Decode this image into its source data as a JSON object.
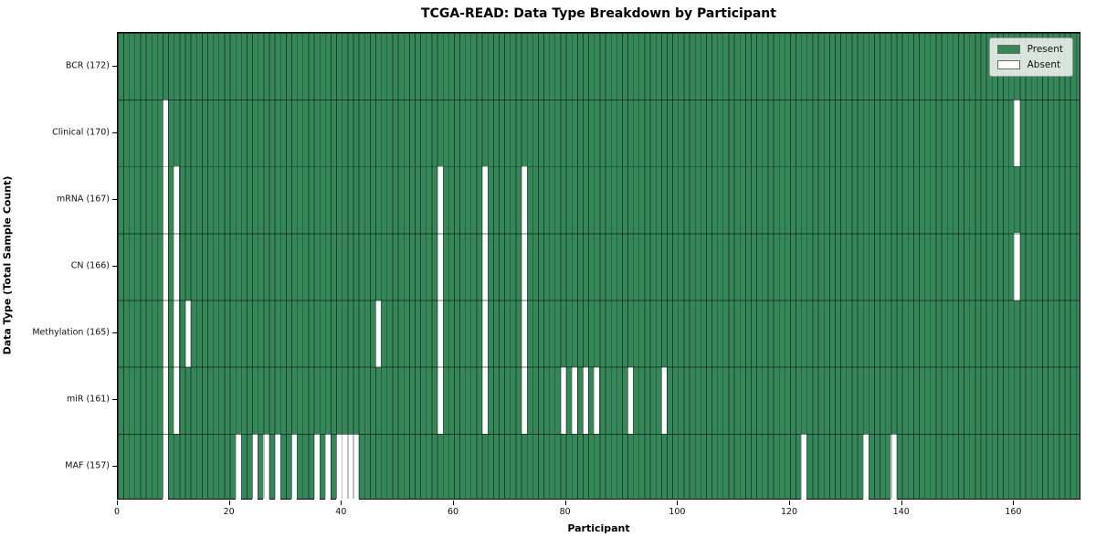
{
  "title": "TCGA-READ: Data Type Breakdown by Participant",
  "xlabel": "Participant",
  "ylabel": "Data Type (Total Sample Count)",
  "legend": {
    "present_label": "Present",
    "absent_label": "Absent"
  },
  "colors": {
    "present": "#358658",
    "absent": "#ffffff"
  },
  "chart_data": {
    "type": "heatmap",
    "title": "TCGA-READ: Data Type Breakdown by Participant",
    "xlabel": "Participant",
    "ylabel": "Data Type (Total Sample Count)",
    "legend": [
      "Present",
      "Absent"
    ],
    "legend_position": "upper right",
    "xlim": [
      0,
      172
    ],
    "n_participants": 172,
    "x_ticks": [
      0,
      20,
      40,
      60,
      80,
      100,
      120,
      140,
      160
    ],
    "grid": true,
    "rows": [
      {
        "label": "BCR (172)",
        "name": "BCR",
        "total": 172,
        "absent_participants": []
      },
      {
        "label": "Clinical (170)",
        "name": "Clinical",
        "total": 170,
        "absent_participants": [
          8,
          160
        ]
      },
      {
        "label": "mRNA (167)",
        "name": "mRNA",
        "total": 167,
        "absent_participants": [
          8,
          10,
          57,
          65,
          72
        ]
      },
      {
        "label": "CN (166)",
        "name": "CN",
        "total": 166,
        "absent_participants": [
          8,
          10,
          57,
          65,
          72,
          160
        ]
      },
      {
        "label": "Methylation (165)",
        "name": "Methylation",
        "total": 165,
        "absent_participants": [
          8,
          10,
          12,
          46,
          57,
          65,
          72
        ]
      },
      {
        "label": "miR (161)",
        "name": "miR",
        "total": 161,
        "absent_participants": [
          8,
          10,
          57,
          65,
          72,
          79,
          81,
          83,
          85,
          91,
          97
        ]
      },
      {
        "label": "MAF (157)",
        "name": "MAF",
        "total": 157,
        "absent_participants": [
          8,
          21,
          24,
          26,
          28,
          31,
          35,
          37,
          39,
          40,
          41,
          42,
          122,
          133,
          138
        ]
      }
    ]
  }
}
